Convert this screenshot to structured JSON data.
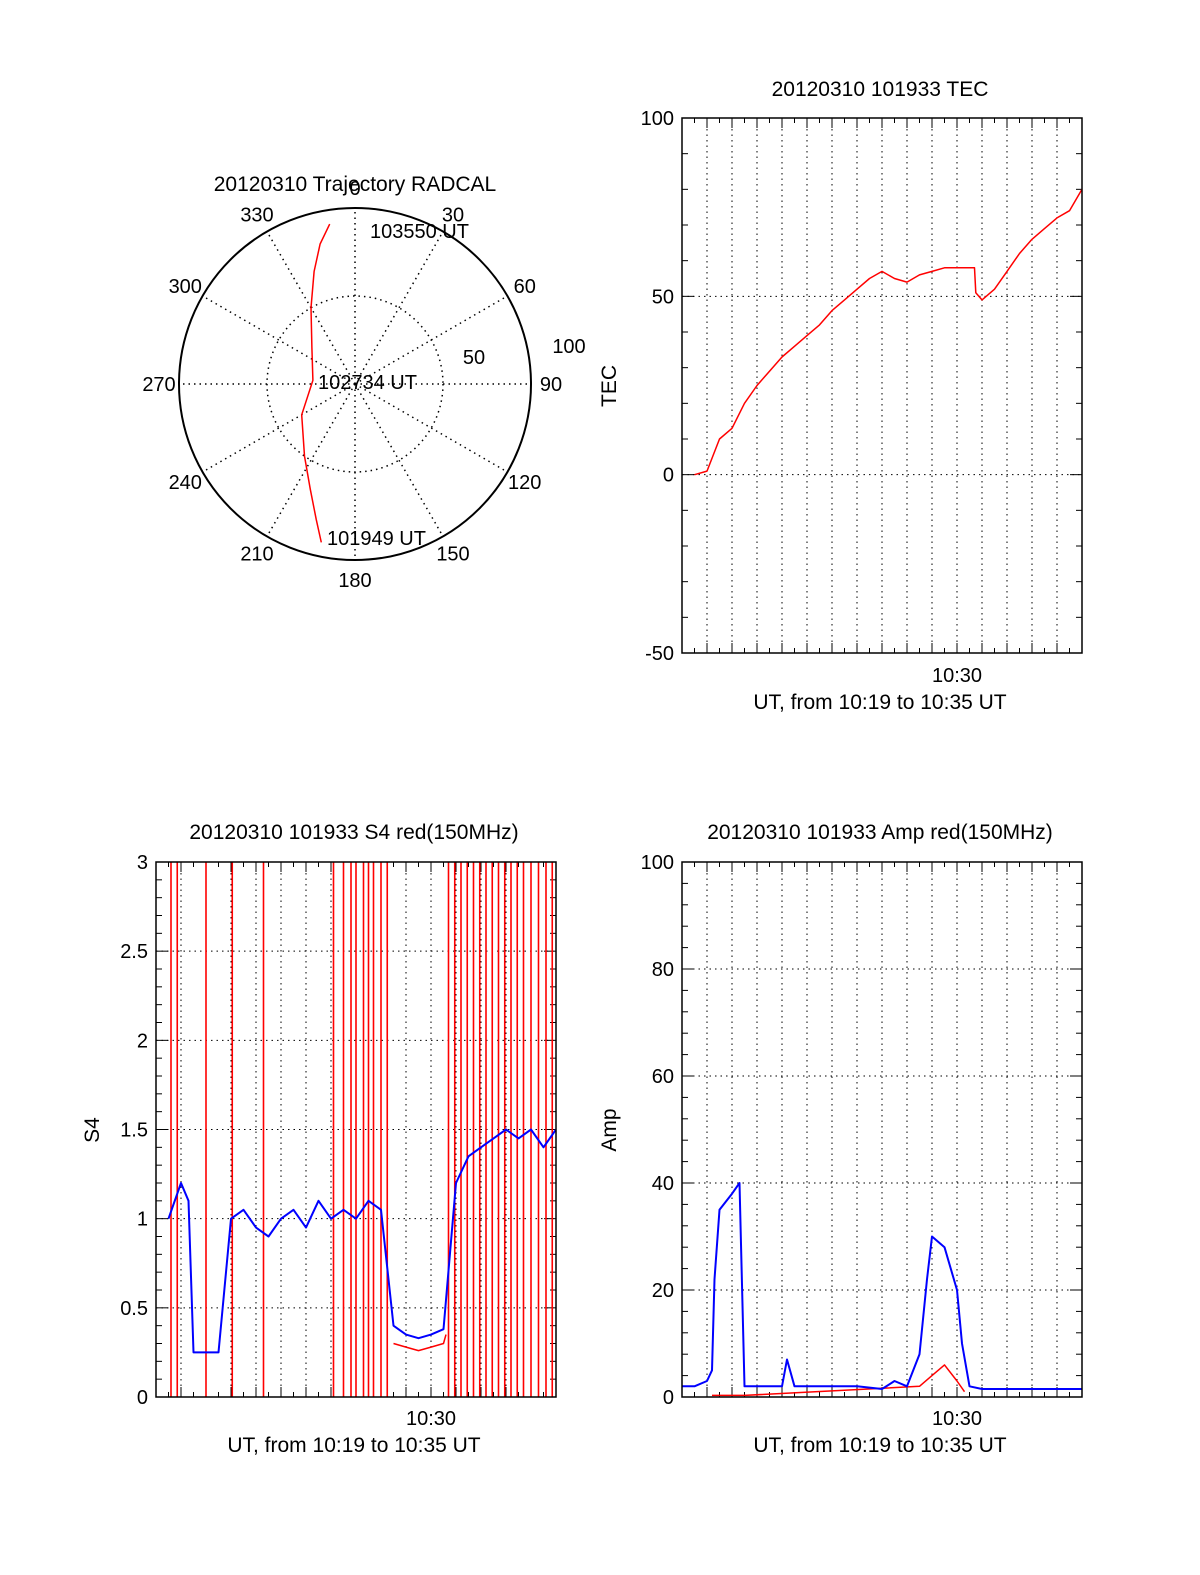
{
  "colors": {
    "red": "#ff0000",
    "blue": "#0000ff",
    "axis": "#000000",
    "grid": "#000000"
  },
  "charts": [
    {
      "id": "trajectory",
      "type": "polar",
      "title": "20120310 Trajectory RADCAL",
      "angle_labels": [
        "0",
        "30",
        "60",
        "90",
        "120",
        "150",
        "180",
        "210",
        "240",
        "270",
        "300",
        "330"
      ],
      "radial_labels": [
        "50",
        "100"
      ],
      "r_max": 100,
      "start_label": "101949 UT",
      "mid_label": "102734 UT",
      "end_label": "103550 UT",
      "track": [
        {
          "az": 192,
          "r": 92
        },
        {
          "az": 196,
          "r": 80
        },
        {
          "az": 203,
          "r": 65
        },
        {
          "az": 215,
          "r": 50
        },
        {
          "az": 240,
          "r": 35
        },
        {
          "az": 275,
          "r": 24
        },
        {
          "az": 310,
          "r": 32
        },
        {
          "az": 330,
          "r": 50
        },
        {
          "az": 340,
          "r": 68
        },
        {
          "az": 346,
          "r": 82
        },
        {
          "az": 351,
          "r": 92
        }
      ]
    },
    {
      "id": "tec",
      "type": "line",
      "title": "20120310 101933 TEC",
      "ylabel": "TEC",
      "xlabel": "UT, from 10:19 to 10:35 UT",
      "ylim": [
        -50,
        100
      ],
      "yticks": [
        "-50",
        "0",
        "50",
        "100"
      ],
      "xlim": [
        0,
        16
      ],
      "xtick_label": "10:30",
      "xtick_pos": 11,
      "series": [
        {
          "name": "TEC",
          "color": "red",
          "x": [
            0.5,
            1,
            1.5,
            2,
            2.5,
            3,
            3.5,
            4,
            4.5,
            5,
            5.5,
            6,
            6.5,
            7,
            7.5,
            8,
            8.5,
            9,
            9.5,
            10,
            10.5,
            11,
            11.5,
            11.7,
            11.75,
            12,
            12.5,
            13,
            13.5,
            14,
            14.5,
            15,
            15.5,
            16
          ],
          "y": [
            0,
            1,
            10,
            13,
            20,
            25,
            29,
            33,
            36,
            39,
            42,
            46,
            49,
            52,
            55,
            57,
            55,
            54,
            56,
            57,
            58,
            58,
            58,
            58,
            51,
            49,
            52,
            57,
            62,
            66,
            69,
            72,
            74,
            80
          ]
        }
      ]
    },
    {
      "id": "s4",
      "type": "line",
      "title": "20120310 101933 S4 red(150MHz)",
      "ylabel": "S4",
      "xlabel": "UT, from 10:19 to 10:35 UT",
      "ylim": [
        0,
        3
      ],
      "yticks": [
        "0",
        "0.5",
        "1",
        "1.5",
        "2",
        "2.5",
        "3"
      ],
      "xlim": [
        0,
        16
      ],
      "xtick_label": "10:30",
      "xtick_pos": 11,
      "spikes_red_x": [
        0.6,
        0.85,
        2.0,
        3.05,
        4.3,
        7.1,
        7.5,
        7.8,
        8.0,
        8.3,
        8.5,
        8.7,
        9.0,
        9.25,
        11.7,
        11.95,
        12.2,
        12.45,
        12.7,
        12.95,
        13.2,
        13.45,
        13.7,
        13.95,
        14.2,
        14.45,
        14.7,
        15.0,
        15.3,
        15.6,
        15.85
      ],
      "series": [
        {
          "name": "S4 red (150MHz)",
          "color": "red",
          "x": [
            9.5,
            10,
            10.5,
            11,
            11.5,
            11.6
          ],
          "y": [
            0.3,
            0.28,
            0.26,
            0.28,
            0.3,
            0.35
          ]
        },
        {
          "name": "S4 blue",
          "color": "blue",
          "x": [
            0.5,
            1,
            1.3,
            1.5,
            2,
            2.5,
            3,
            3.5,
            4,
            4.5,
            5,
            5.5,
            6,
            6.5,
            7,
            7.5,
            8,
            8.5,
            9,
            9.5,
            10,
            10.5,
            11,
            11.5,
            12,
            12.5,
            13,
            13.5,
            14,
            14.5,
            15,
            15.5,
            16
          ],
          "y": [
            1.0,
            1.2,
            1.1,
            0.25,
            0.25,
            0.25,
            1.0,
            1.05,
            0.95,
            0.9,
            1.0,
            1.05,
            0.95,
            1.1,
            1.0,
            1.05,
            1.0,
            1.1,
            1.05,
            0.4,
            0.35,
            0.33,
            0.35,
            0.38,
            1.2,
            1.35,
            1.4,
            1.45,
            1.5,
            1.45,
            1.5,
            1.4,
            1.5
          ]
        }
      ]
    },
    {
      "id": "amp",
      "type": "line",
      "title": "20120310 101933 Amp red(150MHz)",
      "ylabel": "Amp",
      "xlabel": "UT, from 10:19 to 10:35 UT",
      "ylim": [
        0,
        100
      ],
      "yticks": [
        "0",
        "20",
        "40",
        "60",
        "80",
        "100"
      ],
      "xlim": [
        0,
        16
      ],
      "xtick_label": "10:30",
      "xtick_pos": 11,
      "series": [
        {
          "name": "Amp red (150MHz)",
          "color": "red",
          "x": [
            1.2,
            2.5,
            9.5,
            10,
            10.5,
            11,
            11.3
          ],
          "y": [
            0.3,
            0.3,
            2,
            4,
            6,
            3,
            1
          ]
        },
        {
          "name": "Amp blue",
          "color": "blue",
          "x": [
            0,
            0.5,
            1,
            1.2,
            1.3,
            1.5,
            2,
            2.3,
            2.5,
            3,
            4,
            4.2,
            4.5,
            5,
            6,
            7,
            8,
            8.5,
            9,
            9.5,
            9.8,
            10,
            10.5,
            11,
            11.2,
            11.5,
            12,
            13,
            14,
            15,
            16
          ],
          "y": [
            2,
            2,
            3,
            5,
            22,
            35,
            38,
            40,
            2,
            2,
            2,
            7,
            2,
            2,
            2,
            2,
            1.5,
            3,
            2,
            8,
            22,
            30,
            28,
            20,
            10,
            2,
            1.5,
            1.5,
            1.5,
            1.5,
            1.5
          ]
        }
      ]
    }
  ]
}
